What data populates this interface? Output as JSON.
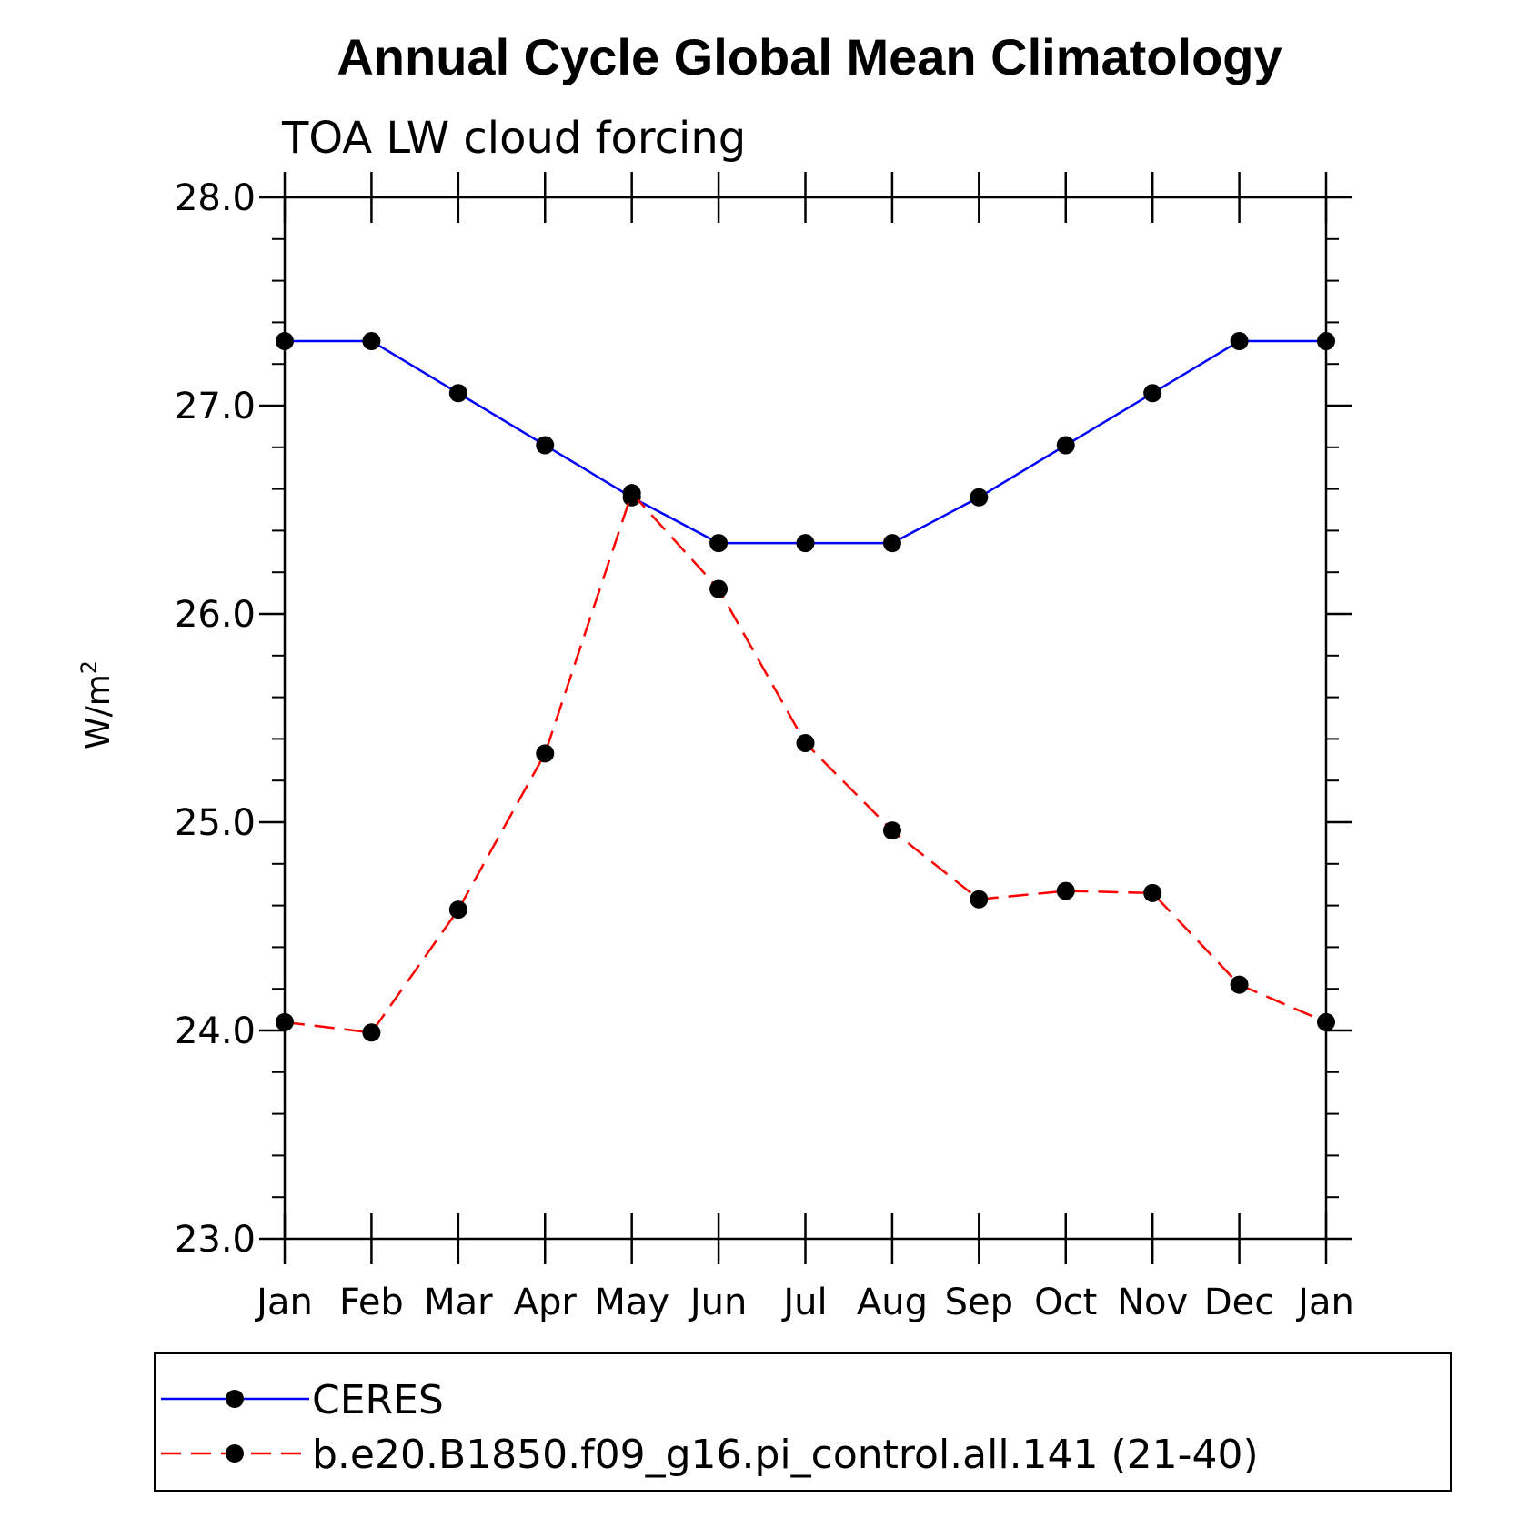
{
  "chart_data": {
    "type": "line",
    "title": "Annual Cycle Global Mean Climatology",
    "subtitle": "TOA LW cloud forcing",
    "ylabel": "W/m",
    "ylabel_sup": "2",
    "xlabel": "",
    "categories": [
      "Jan",
      "Feb",
      "Mar",
      "Apr",
      "May",
      "Jun",
      "Jul",
      "Aug",
      "Sep",
      "Oct",
      "Nov",
      "Dec",
      "Jan"
    ],
    "ylim": [
      23.0,
      28.0
    ],
    "yticks": [
      "23.0",
      "24.0",
      "25.0",
      "26.0",
      "27.0",
      "28.0"
    ],
    "grid": false,
    "legend_position": "bottom",
    "series": [
      {
        "name": "CERES",
        "color": "#0000ff",
        "dash": "solid",
        "values": [
          27.31,
          27.31,
          27.06,
          26.81,
          26.56,
          26.34,
          26.34,
          26.34,
          26.56,
          26.81,
          27.06,
          27.31,
          27.31
        ]
      },
      {
        "name": "b.e20.B1850.f09_g16.pi_control.all.141 (21-40)",
        "color": "#ff0000",
        "dash": "dashed",
        "values": [
          24.04,
          23.99,
          24.58,
          25.33,
          26.58,
          26.12,
          25.38,
          24.96,
          24.63,
          24.67,
          24.66,
          24.22,
          24.04
        ]
      }
    ]
  }
}
